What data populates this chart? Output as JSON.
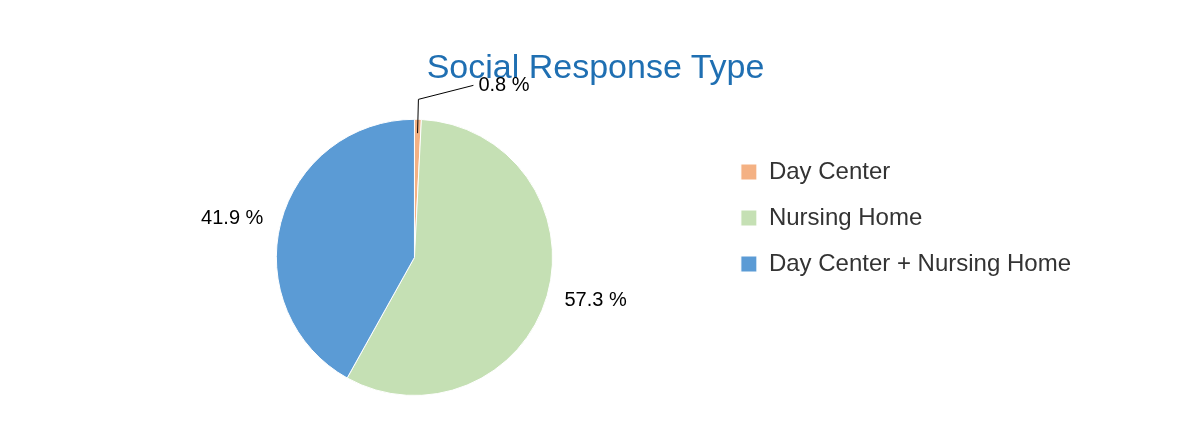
{
  "chart_data": {
    "type": "pie",
    "title": "Social Response Type",
    "categories": [
      "Day Center",
      "Nursing Home",
      "Day Center + Nursing Home"
    ],
    "values": [
      0.8,
      57.3,
      41.9
    ],
    "value_labels": [
      "0.8 %",
      "57.3 %",
      "41.9 %"
    ],
    "colors": [
      "#f4b183",
      "#c5e0b4",
      "#5b9bd5"
    ],
    "legend": "right"
  }
}
